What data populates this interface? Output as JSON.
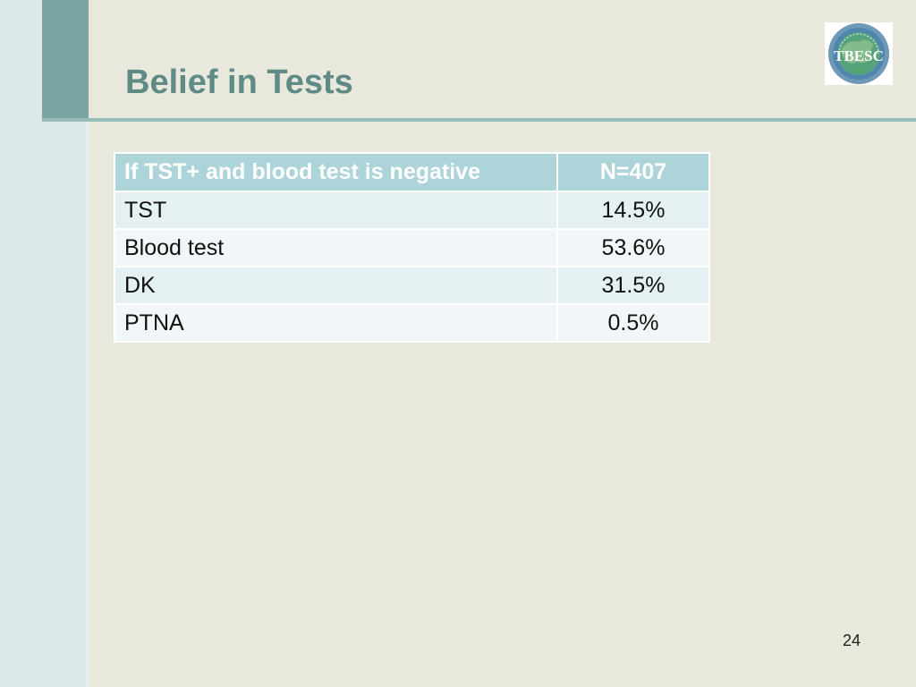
{
  "slide": {
    "title": "Belief in Tests",
    "page_number": "24"
  },
  "logo": {
    "text": "TBESC",
    "icon": "tbesc-globe-logo"
  },
  "table": {
    "headers": [
      "If TST+ and blood test is negative",
      "N=407"
    ],
    "rows": [
      {
        "label": "TST",
        "value": "14.5%"
      },
      {
        "label": "Blood test",
        "value": "53.6%"
      },
      {
        "label": "DK",
        "value": "31.5%"
      },
      {
        "label": "PTNA",
        "value": "0.5%"
      }
    ]
  },
  "colors": {
    "background": "#e9e8dd",
    "title": "#5f8b87",
    "accent": "#78a5a1",
    "header_fill": "#acd4d9",
    "row_fill_odd": "#e4f0f2",
    "row_fill_even": "#f1f7f8"
  }
}
